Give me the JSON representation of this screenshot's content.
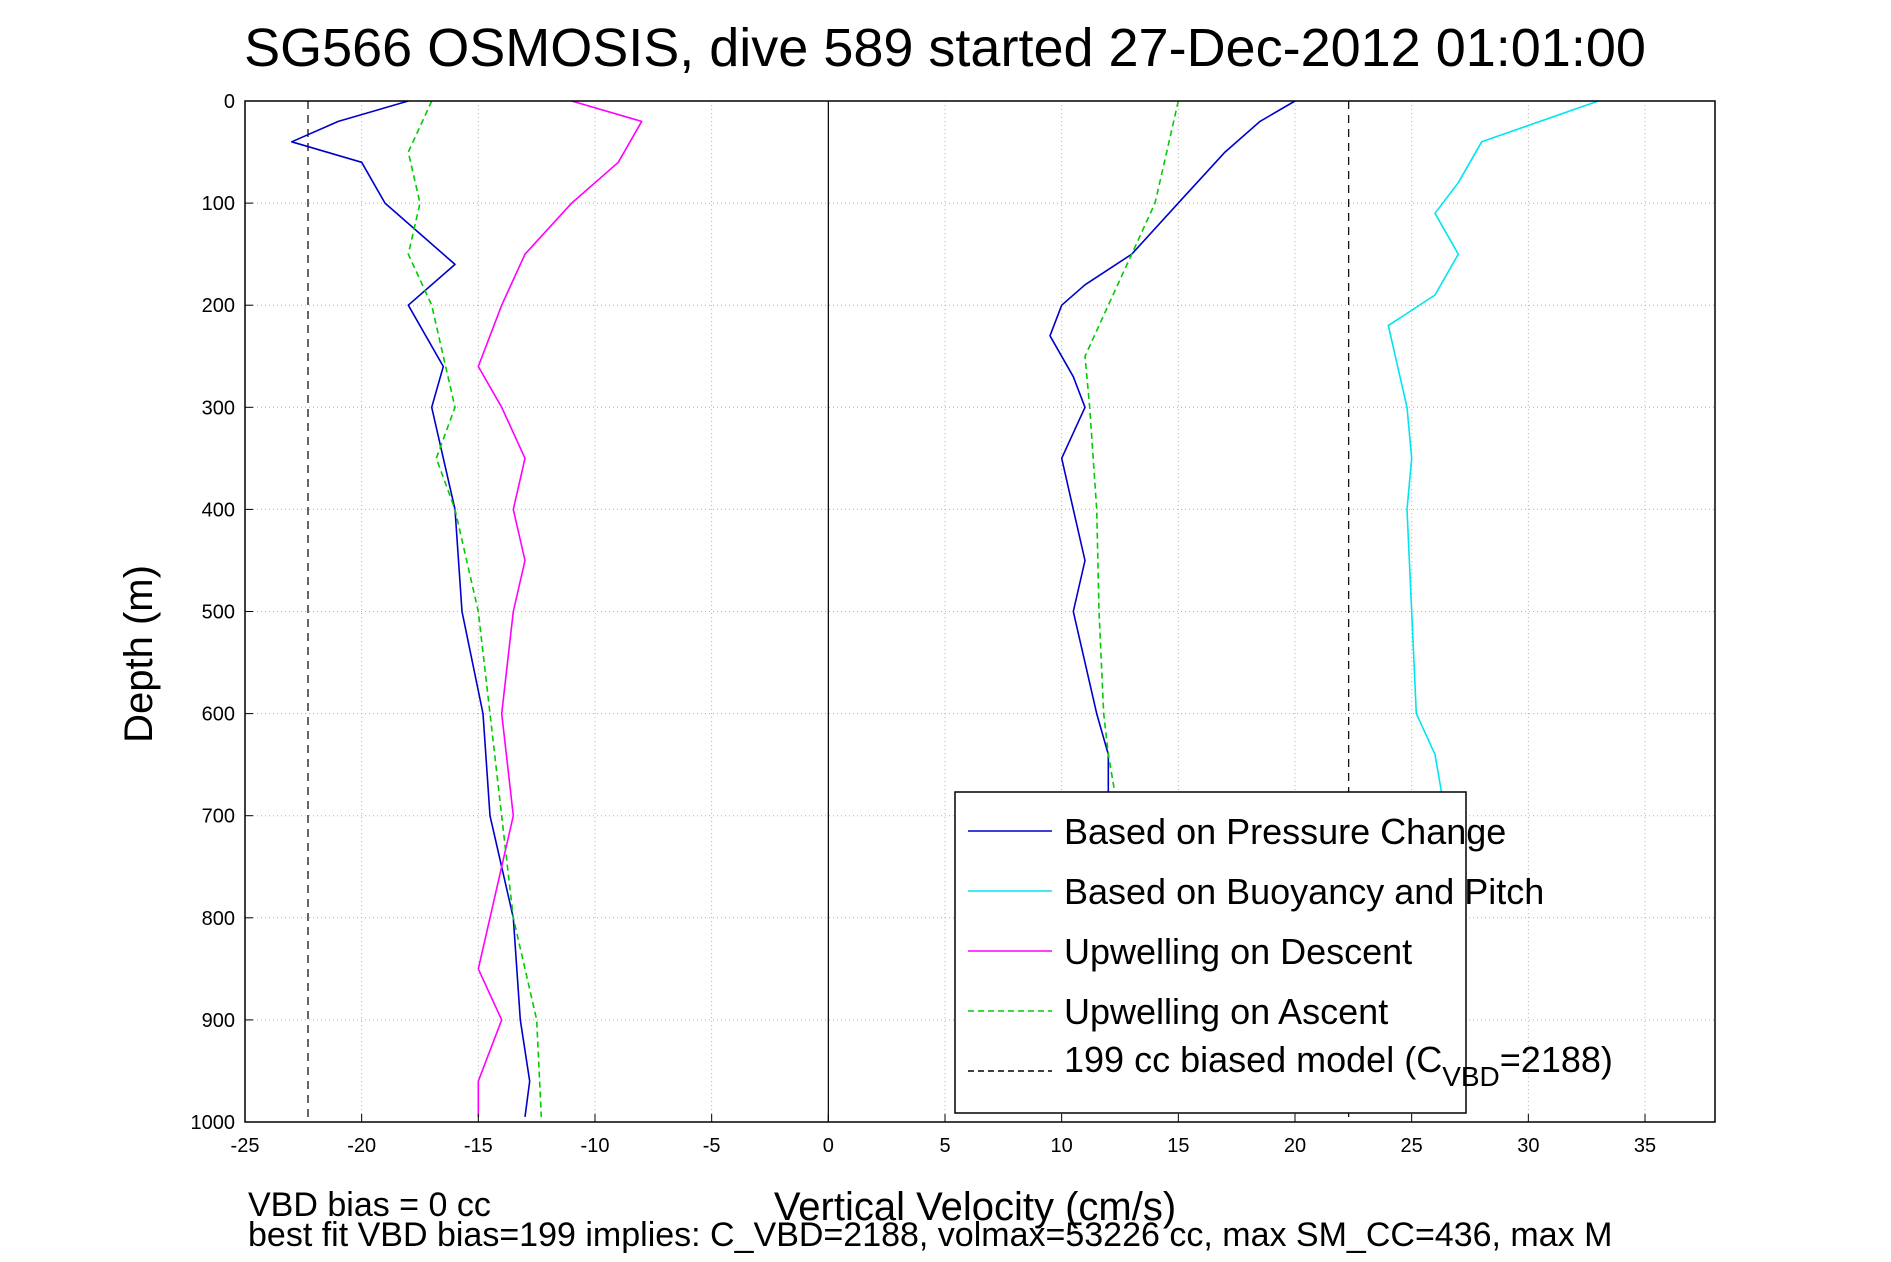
{
  "chart_data": {
    "type": "line",
    "title": "SG566 OSMOSIS, dive 589 started 27-Dec-2012 01:01:00",
    "xlabel": "Vertical Velocity (cm/s)",
    "ylabel": "Depth (m)",
    "xlim": [
      -25,
      38
    ],
    "ylim": [
      0,
      1000
    ],
    "y_reversed": true,
    "grid": true,
    "legend_position": "bottom-right",
    "xticks": [
      -25,
      -20,
      -15,
      -10,
      -5,
      0,
      5,
      10,
      15,
      20,
      25,
      30,
      35
    ],
    "yticks": [
      0,
      100,
      200,
      300,
      400,
      500,
      600,
      700,
      800,
      900,
      1000
    ],
    "reference_lines": [
      {
        "name": "199 cc biased model",
        "x": [
          -22.3,
          22.3
        ],
        "style": "dashed",
        "color": "#000000"
      },
      {
        "name": "zero",
        "x": [
          0
        ],
        "style": "solid",
        "color": "#000000"
      }
    ],
    "series": [
      {
        "name": "Based on Pressure Change",
        "color": "#0000cc",
        "style": "solid",
        "segments": [
          {
            "x": [
              -18,
              -21,
              -23,
              -20,
              -19.5,
              -19,
              -16,
              -18,
              -16.5,
              -17,
              -16,
              -15.7,
              -14.8,
              -14.5,
              -13.5,
              -13.2,
              -12.8,
              -13
            ],
            "y": [
              0,
              20,
              40,
              60,
              80,
              100,
              160,
              200,
              260,
              300,
              400,
              500,
              600,
              700,
              800,
              900,
              960,
              995
            ]
          },
          {
            "x": [
              20,
              18.5,
              17,
              15,
              13,
              11,
              10,
              9.5,
              10.5,
              11,
              10,
              10.5,
              11,
              10.5,
              11,
              11.5,
              12,
              12
            ],
            "y": [
              0,
              20,
              50,
              100,
              150,
              180,
              200,
              230,
              270,
              300,
              350,
              400,
              450,
              500,
              550,
              600,
              640,
              680
            ]
          }
        ]
      },
      {
        "name": "Based on Buoyancy and Pitch",
        "color": "#00e5ee",
        "style": "solid",
        "x": [
          33,
          28,
          27,
          26,
          27,
          26,
          24,
          24.5,
          24.8,
          25,
          24.8,
          25,
          25.2,
          26,
          26.3
        ],
        "y": [
          0,
          40,
          80,
          110,
          150,
          190,
          220,
          270,
          300,
          350,
          400,
          500,
          600,
          640,
          680
        ]
      },
      {
        "name": "Upwelling on Descent",
        "color": "#ff00ff",
        "style": "solid",
        "x": [
          -11,
          -8,
          -9,
          -11,
          -13,
          -14,
          -15,
          -14,
          -13,
          -13.5,
          -13,
          -13.5,
          -14,
          -13.5,
          -14.5,
          -15,
          -14,
          -15,
          -15
        ],
        "y": [
          0,
          20,
          60,
          100,
          150,
          200,
          260,
          300,
          350,
          400,
          450,
          500,
          600,
          700,
          800,
          850,
          900,
          960,
          995
        ]
      },
      {
        "name": "Upwelling on Ascent",
        "color": "#00cc00",
        "style": "dashed",
        "segments": [
          {
            "x": [
              -17,
              -18,
              -17.5,
              -18,
              -17,
              -16.5,
              -16,
              -16.8,
              -16,
              -15,
              -14.5,
              -13.5,
              -12.5,
              -12.3
            ],
            "y": [
              0,
              50,
              100,
              150,
              200,
              250,
              300,
              350,
              400,
              500,
              600,
              800,
              900,
              995
            ]
          },
          {
            "x": [
              15,
              14.5,
              14,
              13,
              12,
              11,
              11.2,
              11.5,
              11.6,
              11.8,
              12,
              12.3
            ],
            "y": [
              0,
              50,
              100,
              150,
              200,
              250,
              300,
              400,
              500,
              600,
              640,
              680
            ]
          }
        ]
      }
    ],
    "legend": [
      {
        "label": "Based on Pressure Change",
        "color": "#0000cc",
        "style": "solid"
      },
      {
        "label": "Based on Buoyancy and Pitch",
        "color": "#00e5ee",
        "style": "solid"
      },
      {
        "label": "Upwelling on Descent",
        "color": "#ff00ff",
        "style": "solid"
      },
      {
        "label": "Upwelling on Ascent",
        "color": "#00cc00",
        "style": "dashed"
      },
      {
        "label_prefix": "199 cc biased model (C",
        "label_sub": "VBD",
        "label_suffix": "=2188)",
        "color": "#000000",
        "style": "dashed"
      }
    ],
    "annotations": [
      "VBD bias = 0 cc",
      "best fit VBD bias=199 implies: C_VBD=2188, volmax=53226 cc, max SM_CC=436, max M"
    ]
  }
}
